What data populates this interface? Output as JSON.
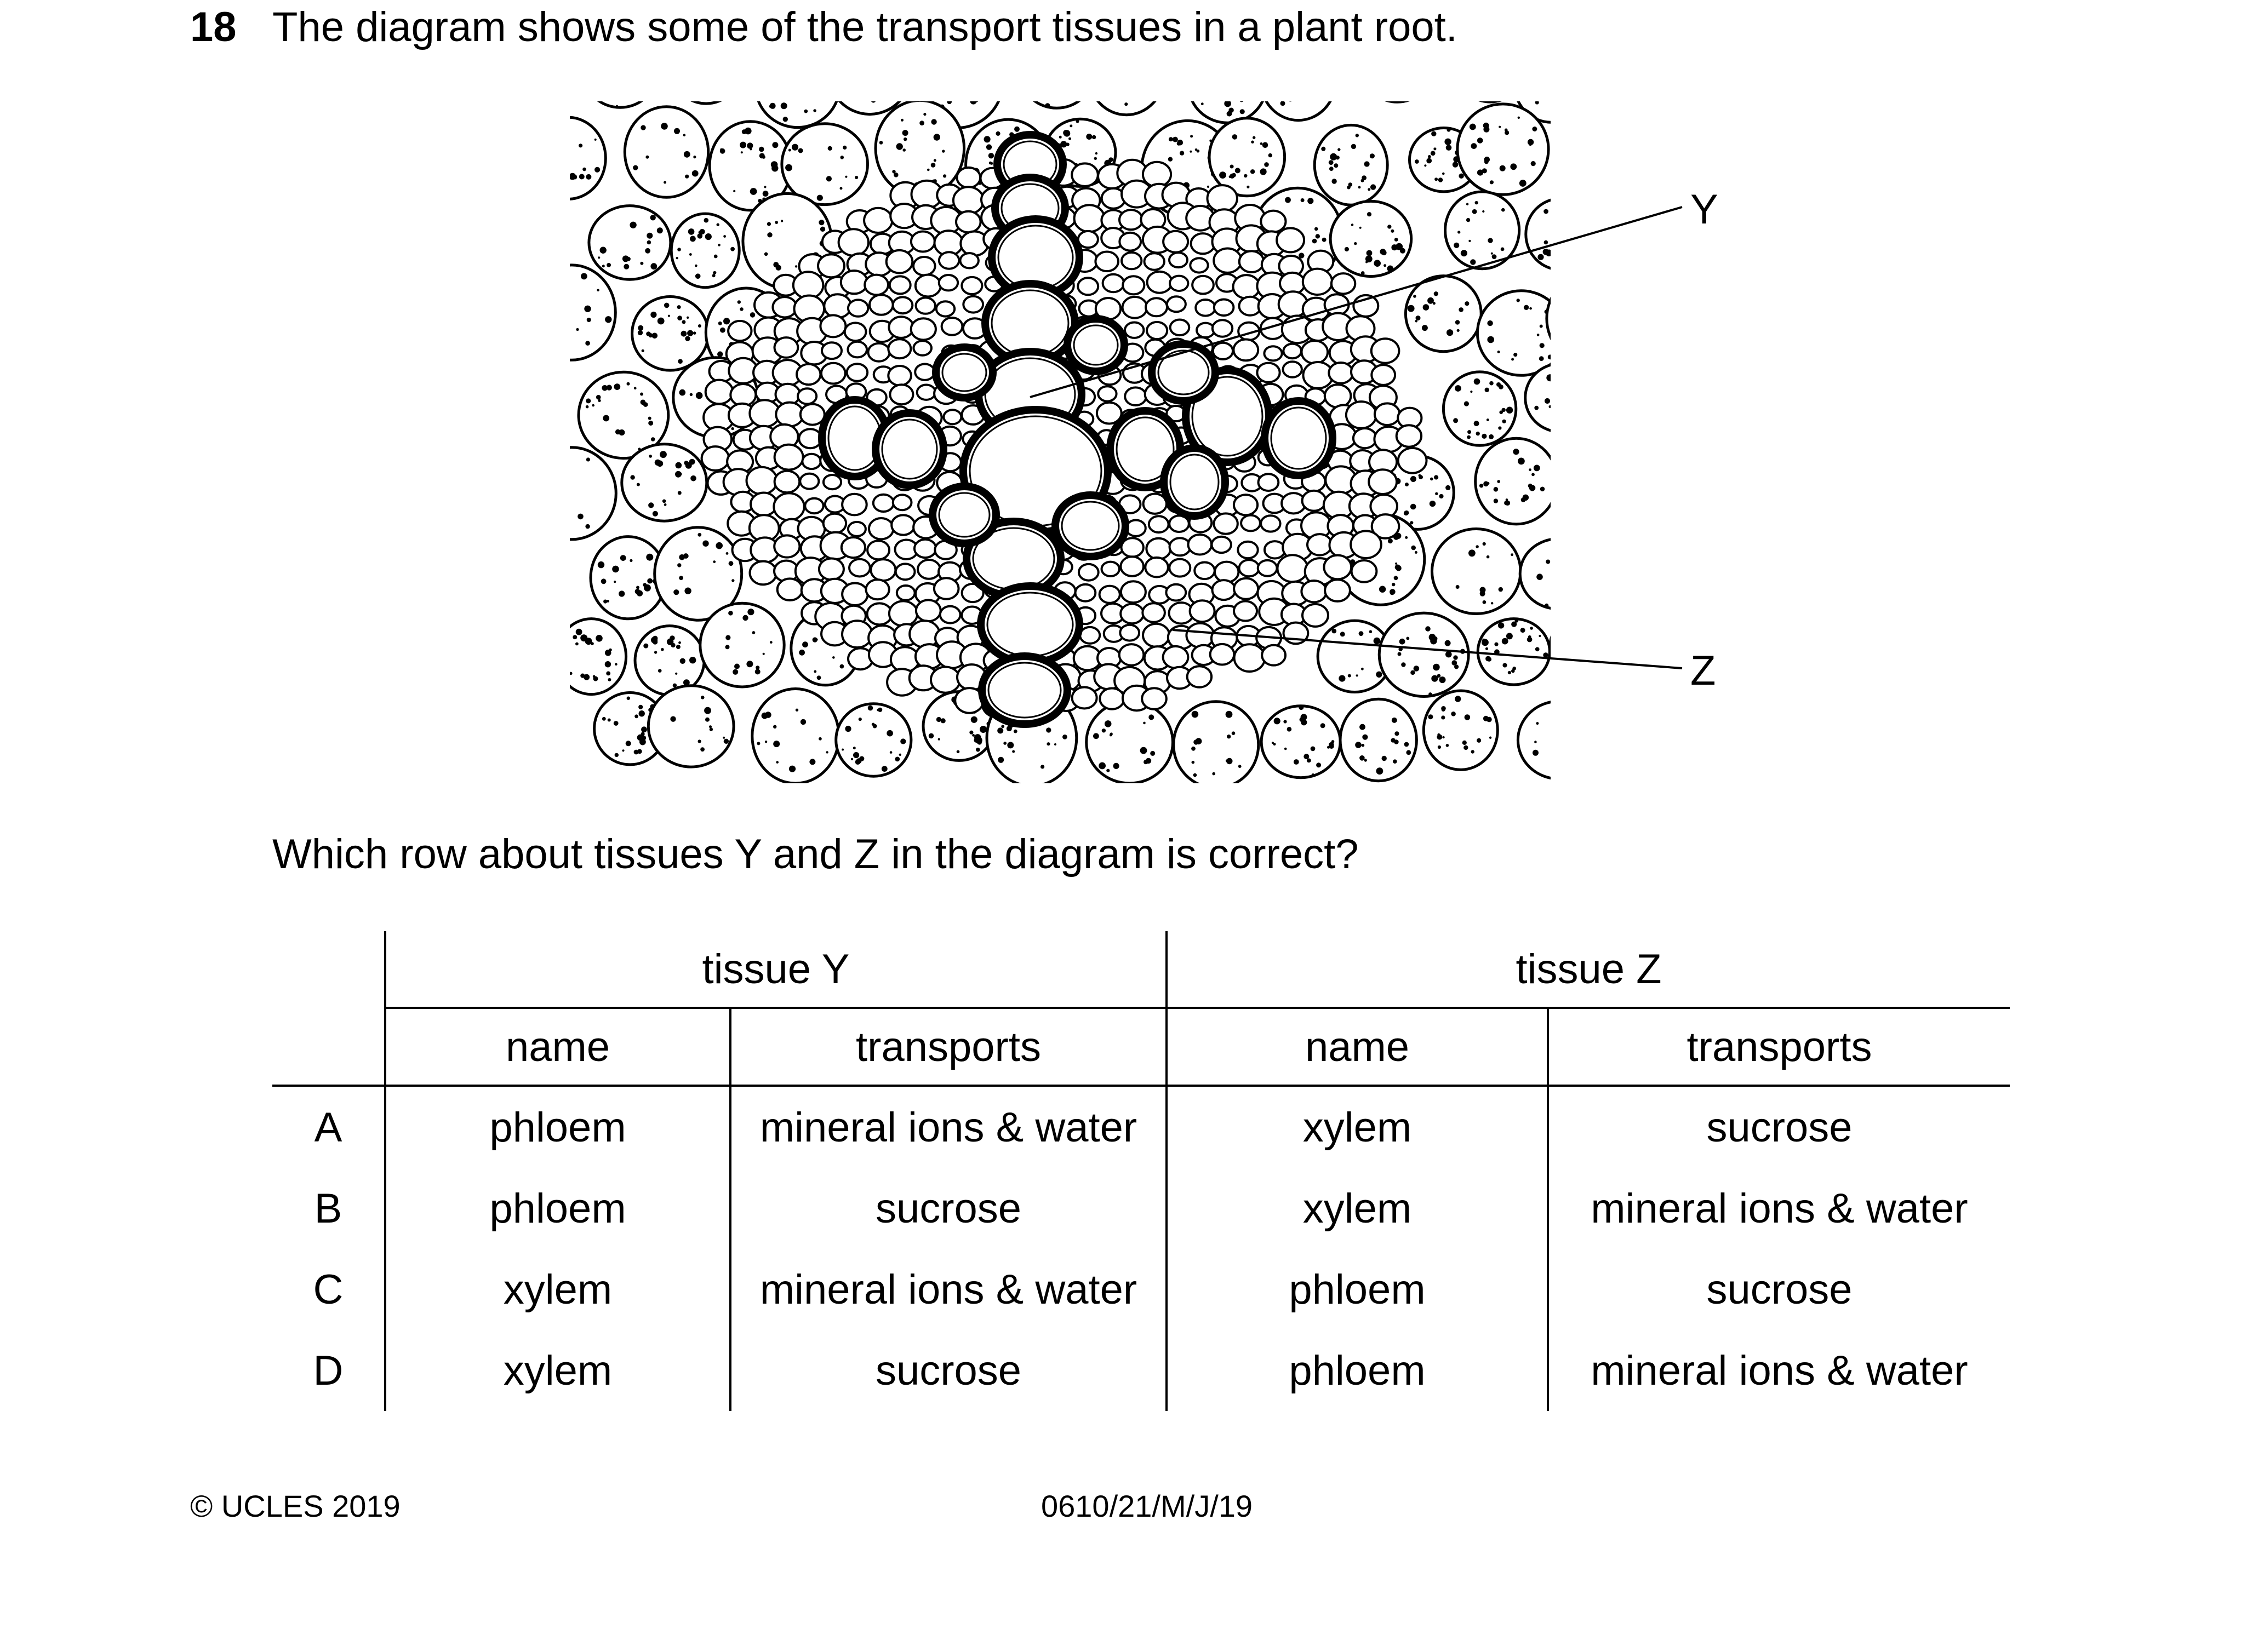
{
  "question": {
    "number": "18",
    "text": "The diagram shows some of the transport tissues in a plant root.",
    "prompt": "Which row about tissues Y and Z in the diagram is correct?"
  },
  "diagram": {
    "label_y": "Y",
    "label_z": "Z"
  },
  "table": {
    "group_headers": [
      "tissue Y",
      "tissue Z"
    ],
    "sub_headers": [
      "name",
      "transports",
      "name",
      "transports"
    ],
    "rows": [
      {
        "letter": "A",
        "y_name": "phloem",
        "y_transports": "mineral ions & water",
        "z_name": "xylem",
        "z_transports": "sucrose"
      },
      {
        "letter": "B",
        "y_name": "phloem",
        "y_transports": "sucrose",
        "z_name": "xylem",
        "z_transports": "mineral ions & water"
      },
      {
        "letter": "C",
        "y_name": "xylem",
        "y_transports": "mineral ions & water",
        "z_name": "phloem",
        "z_transports": "sucrose"
      },
      {
        "letter": "D",
        "y_name": "xylem",
        "y_transports": "sucrose",
        "z_name": "phloem",
        "z_transports": "mineral ions & water"
      }
    ]
  },
  "footer": {
    "copyright": "© UCLES 2019",
    "code": "0610/21/M/J/19"
  }
}
